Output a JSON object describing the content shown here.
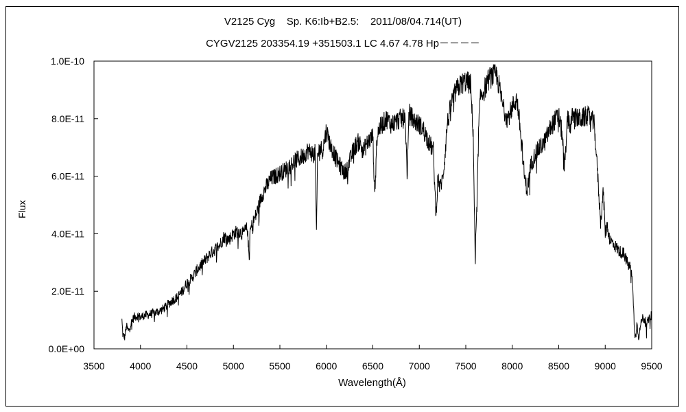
{
  "chart_data": {
    "type": "line",
    "title": "V2125 Cyg    Sp. K6:Ib+B2.5:    2011/08/04.714(UT)",
    "subtitle": "CYGV2125 203354.19 +351503.1 LC 4.67 4.78 Hp－－－－",
    "xlabel": "Wavelength(Å)",
    "ylabel": "Flux",
    "xlim": [
      3500,
      9500
    ],
    "ylim": [
      0,
      1e-10
    ],
    "xticks": [
      "3500",
      "4000",
      "4500",
      "5000",
      "5500",
      "6000",
      "6500",
      "7000",
      "7500",
      "8000",
      "8500",
      "9000",
      "9500"
    ],
    "yticks": [
      "0.0E+00",
      "2.0E-11",
      "4.0E-11",
      "6.0E-11",
      "8.0E-11",
      "1.0E-10"
    ],
    "grid": false,
    "series": [
      {
        "values_unit": "1E-11",
        "x": [
          3800,
          3810,
          3830,
          3850,
          3870,
          3900,
          3930,
          3970,
          4000,
          4030,
          4100,
          4150,
          4200,
          4250,
          4300,
          4350,
          4400,
          4450,
          4500,
          4550,
          4600,
          4650,
          4700,
          4750,
          4800,
          4850,
          4900,
          4950,
          5000,
          5050,
          5100,
          5150,
          5170,
          5180,
          5200,
          5250,
          5300,
          5350,
          5400,
          5450,
          5500,
          5550,
          5600,
          5650,
          5700,
          5750,
          5800,
          5850,
          5880,
          5893,
          5905,
          5930,
          5960,
          6000,
          6040,
          6080,
          6120,
          6160,
          6200,
          6250,
          6280,
          6300,
          6350,
          6400,
          6450,
          6500,
          6520,
          6540,
          6560,
          6600,
          6650,
          6700,
          6750,
          6800,
          6850,
          6868,
          6890,
          6950,
          7000,
          7050,
          7100,
          7150,
          7180,
          7200,
          7220,
          7250,
          7270,
          7300,
          7350,
          7400,
          7450,
          7500,
          7550,
          7580,
          7600,
          7620,
          7640,
          7660,
          7700,
          7750,
          7800,
          7830,
          7860,
          7900,
          7950,
          8000,
          8050,
          8100,
          8130,
          8160,
          8200,
          8250,
          8300,
          8350,
          8400,
          8450,
          8500,
          8540,
          8560,
          8600,
          8620,
          8650,
          8700,
          8750,
          8800,
          8850,
          8880,
          8900,
          8920,
          8950,
          8980,
          9000,
          9020,
          9050,
          9100,
          9150,
          9200,
          9250,
          9280,
          9300,
          9320,
          9340,
          9360,
          9380,
          9400,
          9450,
          9500
        ],
        "values": [
          1.0,
          0.5,
          0.4,
          0.8,
          0.6,
          0.9,
          1.1,
          1.15,
          1.1,
          1.15,
          1.2,
          1.25,
          1.3,
          1.4,
          1.55,
          1.7,
          1.8,
          2.0,
          2.3,
          2.45,
          2.7,
          2.9,
          3.1,
          3.3,
          3.45,
          3.6,
          3.9,
          3.8,
          4.0,
          4.1,
          4.0,
          4.2,
          3.1,
          4.1,
          4.3,
          4.7,
          5.3,
          5.6,
          5.9,
          6.0,
          6.1,
          6.2,
          6.35,
          6.5,
          6.6,
          6.7,
          6.9,
          6.8,
          6.8,
          3.9,
          6.7,
          7.0,
          6.9,
          7.6,
          7.1,
          6.8,
          6.5,
          6.3,
          6.1,
          6.5,
          6.8,
          7.0,
          7.2,
          6.9,
          7.2,
          7.4,
          5.3,
          7.2,
          7.6,
          7.8,
          8.0,
          7.8,
          7.9,
          8.0,
          8.0,
          6.0,
          8.2,
          7.9,
          7.8,
          7.6,
          7.2,
          6.9,
          4.6,
          6.0,
          5.6,
          5.9,
          6.5,
          7.8,
          8.6,
          9.0,
          9.2,
          9.3,
          9.2,
          7.5,
          3.2,
          5.0,
          7.8,
          8.8,
          9.0,
          9.4,
          9.5,
          9.5,
          9.1,
          8.4,
          8.0,
          8.4,
          8.7,
          7.2,
          6.0,
          5.5,
          6.4,
          6.8,
          7.0,
          7.2,
          7.6,
          7.9,
          8.1,
          7.4,
          6.2,
          8.2,
          7.7,
          8.1,
          8.0,
          8.0,
          8.1,
          8.0,
          7.8,
          7.0,
          6.0,
          4.4,
          5.5,
          4.0,
          4.3,
          3.8,
          3.6,
          3.4,
          3.3,
          2.9,
          2.8,
          1.8,
          0.3,
          0.9,
          0.4,
          0.8,
          1.1,
          0.9,
          1.2
        ]
      }
    ]
  }
}
